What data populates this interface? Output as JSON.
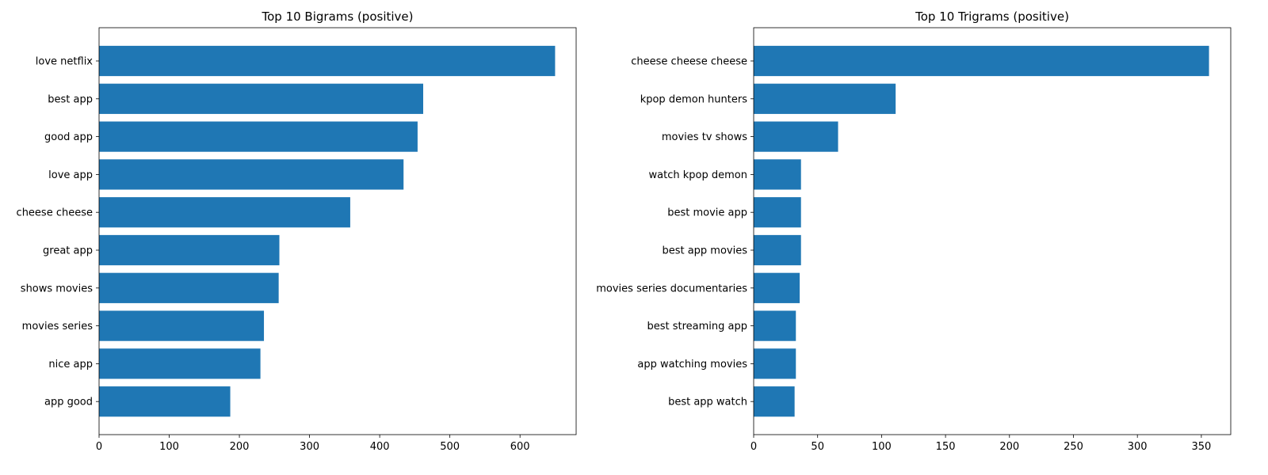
{
  "chart_data": [
    {
      "type": "bar",
      "orientation": "horizontal",
      "title": "Top 10 Bigrams (positive)",
      "xlabel": "",
      "ylabel": "",
      "categories": [
        "love netflix",
        "best app",
        "good app",
        "love app",
        "cheese cheese",
        "great app",
        "shows movies",
        "movies series",
        "nice app",
        "app good"
      ],
      "values": [
        650,
        462,
        454,
        434,
        358,
        257,
        256,
        235,
        230,
        187
      ],
      "xlim": [
        0,
        680
      ],
      "xticks": [
        0,
        100,
        200,
        300,
        400,
        500,
        600
      ],
      "grid": false,
      "color": "#1f77b4"
    },
    {
      "type": "bar",
      "orientation": "horizontal",
      "title": "Top 10 Trigrams (positive)",
      "xlabel": "",
      "ylabel": "",
      "categories": [
        "cheese cheese cheese",
        "kpop demon hunters",
        "movies tv shows",
        "watch kpop demon",
        "best movie app",
        "best app movies",
        "movies series documentaries",
        "best streaming app",
        "app watching movies",
        "best app watch"
      ],
      "values": [
        356,
        111,
        66,
        37,
        37,
        37,
        36,
        33,
        33,
        32
      ],
      "xlim": [
        0,
        373
      ],
      "xticks": [
        0,
        50,
        100,
        150,
        200,
        250,
        300,
        350
      ],
      "grid": false,
      "color": "#1f77b4"
    }
  ]
}
